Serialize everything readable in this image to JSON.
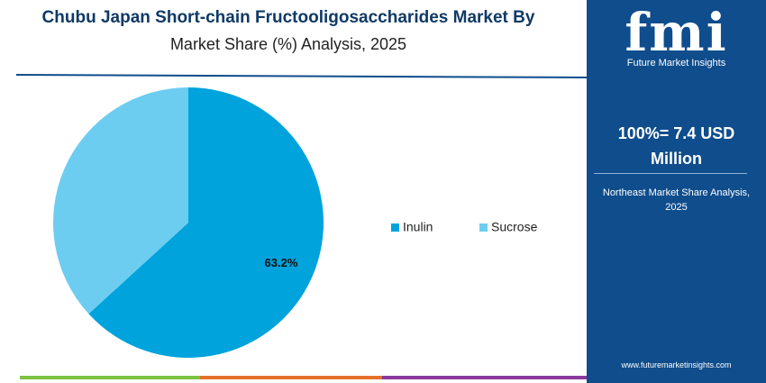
{
  "chart_data": {
    "type": "pie",
    "title": "Chubu Japan Short-chain Fructooligosaccharides Market By",
    "subtitle": "Market Share (%) Analysis, 2025",
    "categories": [
      "Inulin",
      "Sucrose"
    ],
    "values": [
      63.2,
      36.8
    ],
    "value_labels": [
      "63.2%",
      null
    ],
    "colors": [
      "#00a3dc",
      "#6dcdf0"
    ]
  },
  "panel": {
    "logo": "fmi",
    "logo_sub": "Future Market Insights",
    "total": "100%= 7.4 USD Million",
    "note": "Northeast Market Share Analysis, 2025",
    "url": "www.futuremarketinsights.com"
  }
}
